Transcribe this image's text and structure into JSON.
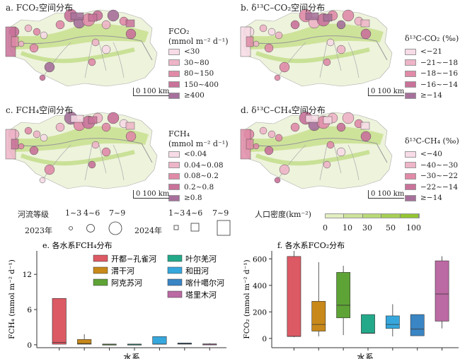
{
  "panels": {
    "a": {
      "title": "a. FCO₂空间分布",
      "legend_title": "FCO₂",
      "legend_unit": "(mmol m⁻² d⁻¹)",
      "items": [
        "<30",
        "30~80",
        "80~150",
        "150~400",
        "≥400"
      ]
    },
    "b": {
      "title": "b. δ¹³C–CO₂空间分布",
      "legend_title": "δ¹³C-CO₂ (‰)",
      "items": [
        "<−21",
        "−21~−18",
        "−18~−16",
        "−16~−14",
        "≥−14"
      ]
    },
    "c": {
      "title": "c. FCH₄空间分布",
      "legend_title": "FCH₄",
      "legend_unit": "(mmol m⁻² d⁻¹)",
      "items": [
        "<0.04",
        "0.04~0.08",
        "0.08~0.2",
        "0.2~0.8",
        "≥0.8"
      ]
    },
    "d": {
      "title": "d. δ¹³C–CH₄空间分布",
      "legend_title": "δ¹³C-CH₄ (‰)",
      "items": [
        "<−40",
        "−40~−30",
        "−30~−22",
        "−22~−14",
        "≥−14"
      ]
    }
  },
  "scale_bar": "0 100 km",
  "legend_colors": [
    "#f7dbe6",
    "#eeb4c8",
    "#e08aa8",
    "#c9729a",
    "#a6709a"
  ],
  "shared_legend": {
    "stream_order_label": "河流等级",
    "orders": [
      "1~3",
      "4~6",
      "7~9"
    ],
    "year_2023": "2023年",
    "year_2024": "2024年",
    "density_label": "人口密度(km⁻²)",
    "density_ticks": [
      "0",
      "10",
      "30",
      "50",
      "100"
    ],
    "density_colors": [
      "#e3eec0",
      "#cde39a",
      "#b9d977",
      "#a6cf55",
      "#93c532"
    ]
  },
  "chart_data": [
    {
      "type": "box",
      "title": "e. 各水系FCH₄分布",
      "xlabel": "水系",
      "ylabel": "FCH₄ (mmol m⁻² d⁻¹)",
      "ylim": [
        -0.5,
        16
      ],
      "yticks": [
        0,
        6,
        12
      ],
      "categories": [
        "开都−孔雀河",
        "渭干河",
        "阿克苏河",
        "叶尔羌河",
        "和田河",
        "喀什噶尔河",
        "塔里木河"
      ],
      "colors": [
        "#dc5a64",
        "#c8891a",
        "#5ea336",
        "#23a98a",
        "#36a7dc",
        "#3a85c4",
        "#bb6aa3"
      ],
      "boxes": [
        {
          "min": 0.1,
          "q1": 0.1,
          "median": 0.4,
          "q3": 7.9,
          "max": 7.9
        },
        {
          "min": 0.1,
          "q1": 0.1,
          "median": 0.2,
          "q3": 0.9,
          "max": 1.8
        },
        {
          "min": 0.05,
          "q1": 0.05,
          "median": 0.08,
          "q3": 0.12,
          "max": 0.12
        },
        {
          "min": 0.05,
          "q1": 0.05,
          "median": 0.08,
          "q3": 0.12,
          "max": 0.12
        },
        {
          "min": 0.1,
          "q1": 0.1,
          "median": 0.1,
          "q3": 1.4,
          "max": 1.4
        },
        {
          "min": 0.1,
          "q1": 0.1,
          "median": 0.2,
          "q3": 0.3,
          "max": 0.3
        },
        {
          "min": 0.05,
          "q1": 0.05,
          "median": 0.1,
          "q3": 0.15,
          "max": 0.25
        }
      ]
    },
    {
      "type": "box",
      "title": "f. 各水系FCO₂分布",
      "xlabel": "水系",
      "ylabel": "FCO₂ (mmol m⁻² d⁻¹)",
      "ylim": [
        -70,
        660
      ],
      "yticks": [
        0,
        200,
        400,
        600
      ],
      "categories": [
        "开都−孔雀河",
        "渭干河",
        "阿克苏河",
        "叶尔羌河",
        "和田河",
        "喀什噶尔河",
        "塔里木河"
      ],
      "colors": [
        "#dc5a64",
        "#c8891a",
        "#5ea336",
        "#23a98a",
        "#36a7dc",
        "#3a85c4",
        "#bb6aa3"
      ],
      "boxes": [
        {
          "min": 10,
          "q1": 15,
          "median": 15,
          "q3": 618,
          "max": 660
        },
        {
          "min": 15,
          "q1": 55,
          "median": 105,
          "q3": 280,
          "max": 575
        },
        {
          "min": 25,
          "q1": 155,
          "median": 250,
          "q3": 498,
          "max": 548
        },
        {
          "min": 38,
          "q1": 38,
          "median": 40,
          "q3": 180,
          "max": 180
        },
        {
          "min": 15,
          "q1": 75,
          "median": 105,
          "q3": 170,
          "max": 258
        },
        {
          "min": 20,
          "q1": 20,
          "median": 70,
          "q3": 180,
          "max": 180
        },
        {
          "min": 75,
          "q1": 130,
          "median": 335,
          "q3": 585,
          "max": 620
        }
      ]
    }
  ]
}
